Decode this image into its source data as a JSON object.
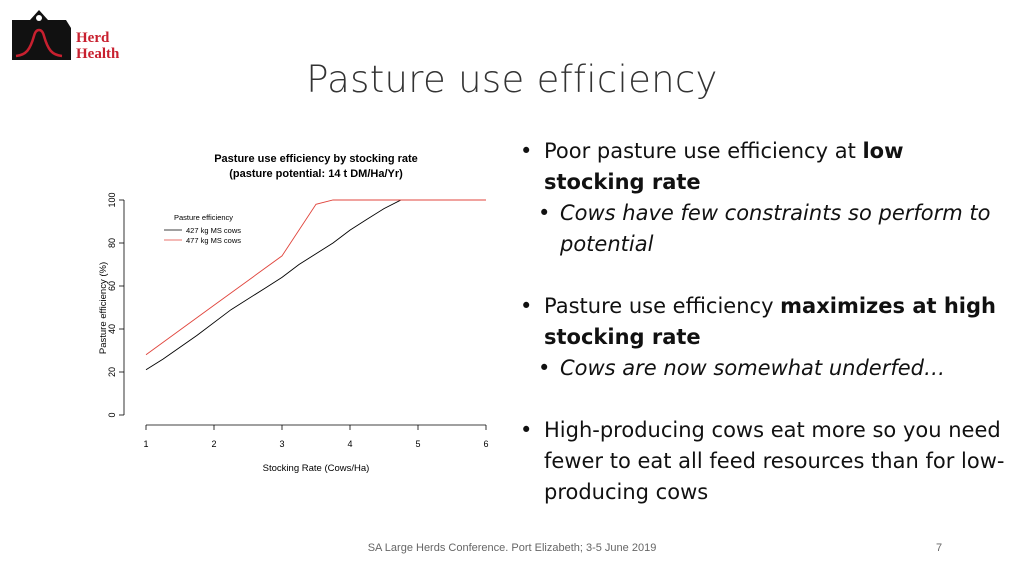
{
  "logo": {
    "line1": "Herd",
    "line2": "Health"
  },
  "slide": {
    "title": "Pasture use efficiency"
  },
  "bullets": {
    "b1_pre": "Poor pasture use efficiency at ",
    "b1_bold": "low stocking rate",
    "b1_sub": "Cows have few constraints so perform to potential",
    "b2_pre": "Pasture use efficiency ",
    "b2_bold": "maximizes at high stocking rate",
    "b2_sub": "Cows are now somewhat underfed…",
    "b3": "High-producing cows eat more so you need fewer to eat all feed resources than for low-producing cows"
  },
  "footer": {
    "text": "SA Large Herds Conference.  Port Elizabeth; 3-5 June 2019",
    "page": "7"
  },
  "colors": {
    "brand": "#c8202f",
    "series_427": "#000000",
    "series_477": "#e0443c"
  },
  "chart_data": {
    "type": "line",
    "title": "Pasture use efficiency by stocking rate",
    "subtitle": "(pasture potential: 14 t DM/Ha/Yr)",
    "xlabel": "Stocking Rate (Cows/Ha)",
    "ylabel": "Pasture efficiency (%)",
    "xlim": [
      1,
      6
    ],
    "ylim": [
      0,
      100
    ],
    "xticks": [
      "1",
      "2",
      "3",
      "4",
      "5",
      "6"
    ],
    "yticks": [
      "0",
      "20",
      "40",
      "60",
      "80",
      "100"
    ],
    "legend_title": "Pasture efficiency",
    "legend_position": "top-left",
    "grid": false,
    "series": [
      {
        "name": "427 kg MS cows",
        "x": [
          1,
          1.25,
          1.75,
          2.25,
          2.75,
          3,
          3.25,
          3.75,
          4,
          4.25,
          4.5,
          4.75,
          5,
          6
        ],
        "y": [
          21,
          26,
          37,
          49,
          59,
          64,
          70,
          80,
          86,
          91,
          96,
          100,
          100,
          100
        ]
      },
      {
        "name": "477 kg MS cows",
        "x": [
          1,
          2,
          3,
          3.5,
          3.75,
          4,
          5,
          6
        ],
        "y": [
          28,
          51,
          74,
          98,
          100,
          100,
          100,
          100
        ]
      }
    ]
  }
}
